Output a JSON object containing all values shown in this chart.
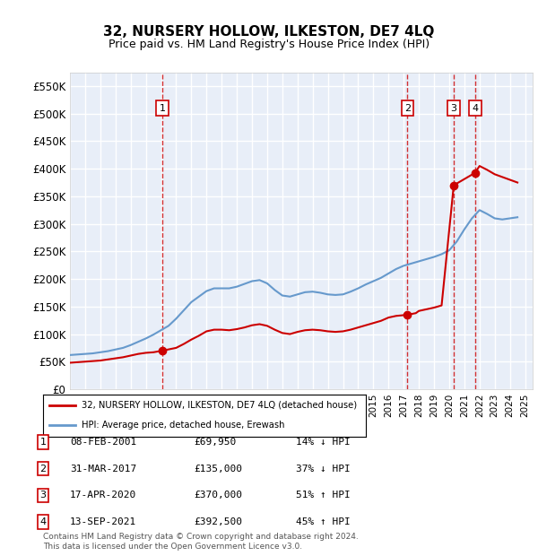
{
  "title": "32, NURSERY HOLLOW, ILKESTON, DE7 4LQ",
  "subtitle": "Price paid vs. HM Land Registry's House Price Index (HPI)",
  "ylabel_ticks": [
    "£0",
    "£50K",
    "£100K",
    "£150K",
    "£200K",
    "£250K",
    "£300K",
    "£350K",
    "£400K",
    "£450K",
    "£500K",
    "£550K"
  ],
  "ytick_values": [
    0,
    50000,
    100000,
    150000,
    200000,
    250000,
    300000,
    350000,
    400000,
    450000,
    500000,
    550000
  ],
  "ylim": [
    0,
    575000
  ],
  "xlim_start": 1995.0,
  "xlim_end": 2025.5,
  "bg_color": "#e8eef8",
  "plot_bg_color": "#e8eef8",
  "grid_color": "#ffffff",
  "hpi_color": "#6699cc",
  "price_color": "#cc0000",
  "transactions": [
    {
      "label": "1",
      "date": "08-FEB-2001",
      "price": 69950,
      "x_year": 2001.1,
      "hpi_pct": "14% ↓ HPI"
    },
    {
      "label": "2",
      "date": "31-MAR-2017",
      "price": 135000,
      "x_year": 2017.25,
      "hpi_pct": "37% ↓ HPI"
    },
    {
      "label": "3",
      "date": "17-APR-2020",
      "price": 370000,
      "x_year": 2020.3,
      "hpi_pct": "51% ↑ HPI"
    },
    {
      "label": "4",
      "date": "13-SEP-2021",
      "price": 392500,
      "x_year": 2021.7,
      "hpi_pct": "45% ↑ HPI"
    }
  ],
  "hpi_data": {
    "years": [
      1995,
      1995.5,
      1996,
      1996.5,
      1997,
      1997.5,
      1998,
      1998.5,
      1999,
      1999.5,
      2000,
      2000.5,
      2001,
      2001.5,
      2002,
      2002.5,
      2003,
      2003.5,
      2004,
      2004.5,
      2005,
      2005.5,
      2006,
      2006.5,
      2007,
      2007.5,
      2008,
      2008.5,
      2009,
      2009.5,
      2010,
      2010.5,
      2011,
      2011.5,
      2012,
      2012.5,
      2013,
      2013.5,
      2014,
      2014.5,
      2015,
      2015.5,
      2016,
      2016.5,
      2017,
      2017.5,
      2018,
      2018.5,
      2019,
      2019.5,
      2020,
      2020.5,
      2021,
      2021.5,
      2022,
      2022.5,
      2023,
      2023.5,
      2024,
      2024.5
    ],
    "values": [
      62000,
      63000,
      64000,
      65000,
      67000,
      69000,
      72000,
      75000,
      80000,
      86000,
      92000,
      99000,
      107000,
      115000,
      128000,
      143000,
      158000,
      168000,
      178000,
      183000,
      183000,
      183000,
      186000,
      191000,
      196000,
      198000,
      192000,
      180000,
      170000,
      168000,
      172000,
      176000,
      177000,
      175000,
      172000,
      171000,
      172000,
      177000,
      183000,
      190000,
      196000,
      202000,
      210000,
      218000,
      224000,
      228000,
      232000,
      236000,
      240000,
      245000,
      252000,
      268000,
      290000,
      310000,
      325000,
      318000,
      310000,
      308000,
      310000,
      312000
    ]
  },
  "price_data": {
    "years": [
      1995,
      1995.5,
      1996,
      1996.5,
      1997,
      1997.5,
      1998,
      1998.5,
      1999,
      1999.5,
      2000,
      2000.5,
      2001.1,
      2002,
      2002.5,
      2003,
      2003.5,
      2004,
      2004.5,
      2005,
      2005.5,
      2006,
      2006.5,
      2007,
      2007.5,
      2008,
      2008.5,
      2009,
      2009.5,
      2010,
      2010.5,
      2011,
      2011.5,
      2012,
      2012.5,
      2013,
      2013.5,
      2014,
      2014.5,
      2015,
      2015.5,
      2016,
      2016.5,
      2017.25,
      2017.8,
      2018,
      2018.5,
      2019,
      2019.5,
      2020.3,
      2021.7,
      2022,
      2022.5,
      2023,
      2023.5,
      2024,
      2024.5
    ],
    "values": [
      48000,
      49000,
      50000,
      51000,
      52000,
      54000,
      56000,
      58000,
      61000,
      64000,
      66000,
      67000,
      69950,
      75000,
      82000,
      90000,
      97000,
      105000,
      108000,
      108000,
      107000,
      109000,
      112000,
      116000,
      118000,
      115000,
      108000,
      102000,
      100000,
      104000,
      107000,
      108000,
      107000,
      105000,
      104000,
      105000,
      108000,
      112000,
      116000,
      120000,
      124000,
      130000,
      133000,
      135000,
      138000,
      142000,
      145000,
      148000,
      152000,
      370000,
      392500,
      405000,
      398000,
      390000,
      385000,
      380000,
      375000
    ]
  },
  "legend_label_red": "32, NURSERY HOLLOW, ILKESTON, DE7 4LQ (detached house)",
  "legend_label_blue": "HPI: Average price, detached house, Erewash",
  "footer": "Contains HM Land Registry data © Crown copyright and database right 2024.\nThis data is licensed under the Open Government Licence v3.0.",
  "marker_box_color": "#cc0000",
  "marker_label_nums": [
    "1",
    "2",
    "3",
    "4"
  ]
}
